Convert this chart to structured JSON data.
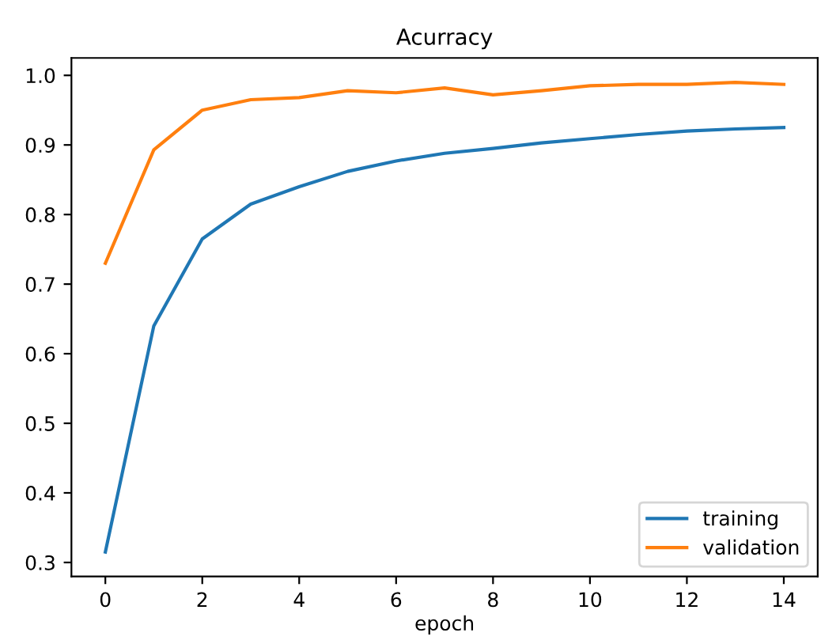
{
  "chart_data": {
    "type": "line",
    "title": "Acurracy",
    "xlabel": "epoch",
    "x": [
      0,
      1,
      2,
      3,
      4,
      5,
      6,
      7,
      8,
      9,
      10,
      11,
      12,
      13,
      14
    ],
    "series": [
      {
        "name": "training",
        "color": "#1f77b4",
        "values": [
          0.315,
          0.64,
          0.765,
          0.815,
          0.84,
          0.862,
          0.877,
          0.888,
          0.895,
          0.903,
          0.909,
          0.915,
          0.92,
          0.923,
          0.925
        ]
      },
      {
        "name": "validation",
        "color": "#ff7f0e",
        "values": [
          0.73,
          0.893,
          0.95,
          0.965,
          0.968,
          0.978,
          0.975,
          0.982,
          0.972,
          0.978,
          0.985,
          0.987,
          0.987,
          0.99,
          0.987
        ]
      }
    ],
    "xlim": [
      -0.7,
      14.7
    ],
    "ylim": [
      0.28,
      1.025
    ],
    "xticks": [
      0,
      2,
      4,
      6,
      8,
      10,
      12,
      14
    ],
    "yticks": [
      {
        "value": 0.3,
        "label": "0.3"
      },
      {
        "value": 0.4,
        "label": "0.4"
      },
      {
        "value": 0.5,
        "label": "0.5"
      },
      {
        "value": 0.6,
        "label": "0.6"
      },
      {
        "value": 0.7,
        "label": "0.7"
      },
      {
        "value": 0.8,
        "label": "0.8"
      },
      {
        "value": 0.9,
        "label": "0.9"
      },
      {
        "value": 1.0,
        "label": "1.0"
      }
    ],
    "legend": "lower right",
    "grid": false
  }
}
